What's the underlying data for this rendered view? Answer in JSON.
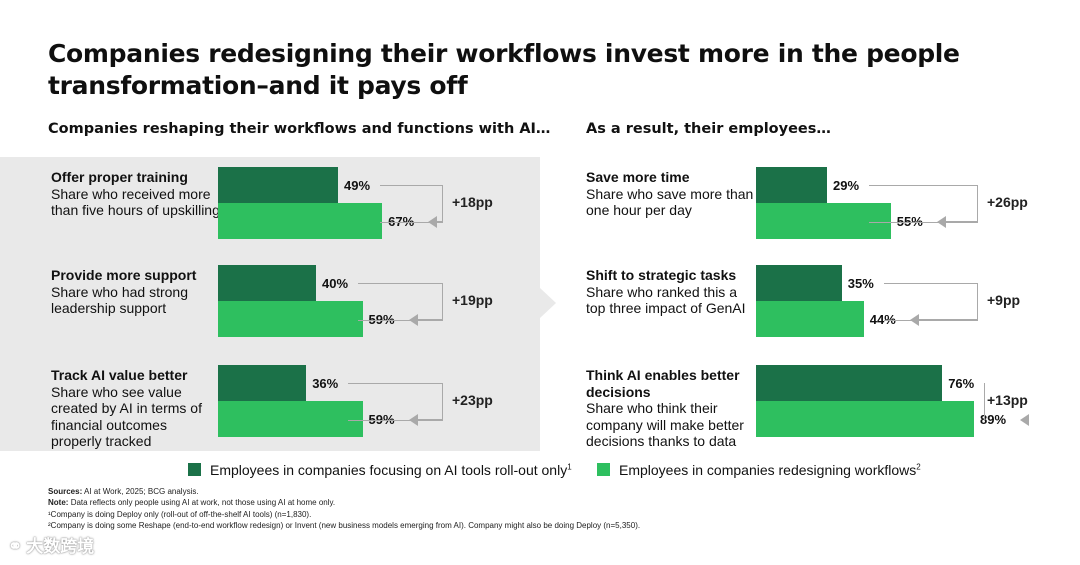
{
  "title": "Companies redesigning their workflows invest more in the people transformation–and it pays off",
  "left_header": "Companies reshaping their workflows and functions with AI…",
  "right_header": "As a result, their employees…",
  "chart_data": [
    {
      "type": "bar",
      "panel": "left",
      "categories": [
        "Offer proper training",
        "Provide more support",
        "Track AI value better"
      ],
      "descriptions": [
        "Share who received more than five hours of upskilling",
        "Share who had strong leadership support",
        "Share who see value created by AI in terms of financial outcomes properly tracked"
      ],
      "series": [
        {
          "name": "Employees in companies focusing on AI tools roll-out only",
          "values": [
            49,
            40,
            36
          ]
        },
        {
          "name": "Employees in companies redesigning workflows",
          "values": [
            67,
            59,
            59
          ]
        }
      ],
      "value_labels": [
        [
          "49%",
          "40%",
          "36%"
        ],
        [
          "67%",
          "59%",
          "59%"
        ]
      ],
      "deltas": [
        "+18pp",
        "+19pp",
        "+23pp"
      ]
    },
    {
      "type": "bar",
      "panel": "right",
      "categories": [
        "Save more time",
        "Shift to strategic tasks",
        "Think AI enables better decisions"
      ],
      "descriptions": [
        "Share who save more than one hour per day",
        "Share who ranked this a top three impact of GenAI",
        "Share who think their company will make better decisions thanks to data"
      ],
      "series": [
        {
          "name": "Employees in companies focusing on AI tools roll-out only",
          "values": [
            29,
            35,
            76
          ]
        },
        {
          "name": "Employees in companies redesigning workflows",
          "values": [
            55,
            44,
            89
          ]
        }
      ],
      "value_labels": [
        [
          "29%",
          "35%",
          "76%"
        ],
        [
          "55%",
          "44%",
          "89%"
        ]
      ],
      "deltas": [
        "+26pp",
        "+9pp",
        "+13pp"
      ]
    }
  ],
  "legend": {
    "item1": "Employees in companies focusing on AI tools roll-out only",
    "item1_sup": "1",
    "item2": "Employees in companies redesigning workflows",
    "item2_sup": "2",
    "item1_color": "#1b7148",
    "item2_color": "#2ebf5f"
  },
  "footnotes": {
    "sources_label": "Sources:",
    "sources": "AI at Work, 2025; BCG analysis.",
    "note_label": "Note:",
    "note": "Data reflects only people using AI at work, not those using AI at home only.",
    "fn1": "¹Company is doing Deploy only (roll-out of off-the-shelf AI tools) (n=1,830).",
    "fn2": "²Company is doing some Reshape (end-to-end workflow redesign) or Invent (new business models emerging from AI). Company might also be doing Deploy (n=5,350)."
  },
  "watermark": "大数跨境"
}
